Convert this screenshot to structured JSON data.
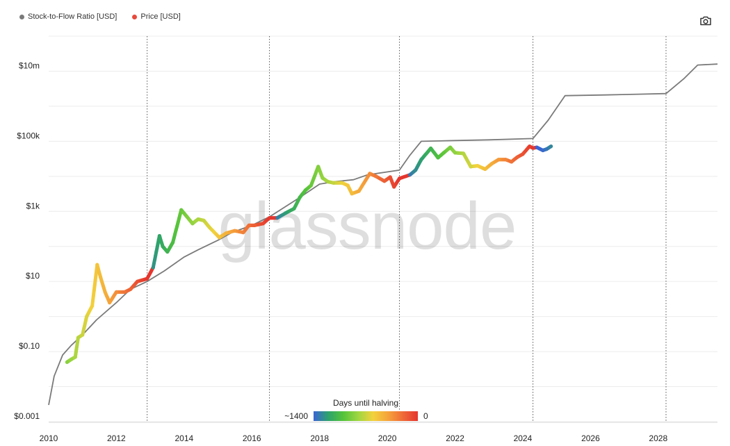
{
  "legend": [
    {
      "name": "Stock-to-Flow Ratio [USD]",
      "color": "#7a7a7a"
    },
    {
      "name": "Price [USD]",
      "color": "#e84a3c"
    }
  ],
  "watermark": "glassnode",
  "camera_icon": "camera-icon",
  "colorbar": {
    "title": "Days until halving",
    "left": "~1400",
    "right": "0",
    "colors": [
      "#3a64d6",
      "#2ea36b",
      "#55c43a",
      "#9fd641",
      "#f2d23c",
      "#f5a33b",
      "#ef6a37",
      "#e5362e"
    ]
  },
  "chart_data": {
    "type": "line",
    "yscale": "log",
    "ylim": [
      0.001,
      100000000
    ],
    "xlim": [
      "2010-01-01",
      "2029-10-01"
    ],
    "y_ticks": [
      {
        "value": 0.001,
        "label": "$0.001"
      },
      {
        "value": 0.1,
        "label": "$0.10"
      },
      {
        "value": 10,
        "label": "$10"
      },
      {
        "value": 1000,
        "label": "$1k"
      },
      {
        "value": 100000,
        "label": "$100k"
      },
      {
        "value": 10000000,
        "label": "$10m"
      }
    ],
    "x_ticks": [
      "2010",
      "2012",
      "2014",
      "2016",
      "2018",
      "2020",
      "2022",
      "2024",
      "2026",
      "2028"
    ],
    "halvings": [
      "2012-11-28",
      "2016-07-09",
      "2020-05-11",
      "2024-04-20",
      "2028-03-25"
    ],
    "series": [
      {
        "name": "Stock-to-Flow Ratio [USD]",
        "color": "#7a7a7a",
        "points": [
          [
            "2010-01-01",
            0.003
          ],
          [
            "2010-03-01",
            0.02
          ],
          [
            "2010-06-01",
            0.08
          ],
          [
            "2010-09-01",
            0.15
          ],
          [
            "2011-01-01",
            0.3
          ],
          [
            "2011-06-01",
            0.8
          ],
          [
            "2012-01-01",
            2.5
          ],
          [
            "2012-06-01",
            6
          ],
          [
            "2012-11-28",
            10
          ],
          [
            "2013-06-01",
            20
          ],
          [
            "2014-01-01",
            50
          ],
          [
            "2014-06-01",
            80
          ],
          [
            "2015-01-01",
            150
          ],
          [
            "2015-06-01",
            250
          ],
          [
            "2016-01-01",
            400
          ],
          [
            "2016-07-09",
            700
          ],
          [
            "2017-06-01",
            2500
          ],
          [
            "2018-01-01",
            6000
          ],
          [
            "2018-06-01",
            7000
          ],
          [
            "2019-01-01",
            8000
          ],
          [
            "2019-06-01",
            11000
          ],
          [
            "2020-05-11",
            15000
          ],
          [
            "2020-09-01",
            40000
          ],
          [
            "2021-01-01",
            100000
          ],
          [
            "2022-01-01",
            105000
          ],
          [
            "2023-01-01",
            110000
          ],
          [
            "2024-04-20",
            120000
          ],
          [
            "2024-10-01",
            400000
          ],
          [
            "2025-04-01",
            2000000
          ],
          [
            "2026-06-01",
            2100000
          ],
          [
            "2027-06-01",
            2200000
          ],
          [
            "2028-03-25",
            2300000
          ],
          [
            "2028-10-01",
            6000000
          ],
          [
            "2029-03-01",
            15000000
          ],
          [
            "2029-10-01",
            16000000
          ]
        ]
      },
      {
        "name": "Price [USD]",
        "color": "#e84a3c",
        "points": [
          [
            "2010-07-18",
            0.05,
            860
          ],
          [
            "2010-09-01",
            0.06,
            815
          ],
          [
            "2010-10-15",
            0.07,
            770
          ],
          [
            "2010-11-15",
            0.25,
            740
          ],
          [
            "2011-01-01",
            0.3,
            695
          ],
          [
            "2011-02-15",
            1.0,
            650
          ],
          [
            "2011-04-15",
            2.0,
            590
          ],
          [
            "2011-06-08",
            30,
            540
          ],
          [
            "2011-07-15",
            13,
            505
          ],
          [
            "2011-09-01",
            5,
            455
          ],
          [
            "2011-10-20",
            2.5,
            405
          ],
          [
            "2012-01-01",
            5,
            330
          ],
          [
            "2012-04-01",
            5,
            240
          ],
          [
            "2012-06-01",
            6,
            180
          ],
          [
            "2012-08-15",
            10,
            105
          ],
          [
            "2012-11-28",
            12,
            0
          ],
          [
            "2013-02-01",
            25,
            1250
          ],
          [
            "2013-04-10",
            200,
            1185
          ],
          [
            "2013-05-15",
            100,
            1150
          ],
          [
            "2013-07-05",
            70,
            1100
          ],
          [
            "2013-09-01",
            130,
            1040
          ],
          [
            "2013-12-01",
            1100,
            950
          ],
          [
            "2014-02-01",
            700,
            890
          ],
          [
            "2014-04-01",
            450,
            830
          ],
          [
            "2014-06-01",
            600,
            770
          ],
          [
            "2014-08-01",
            550,
            710
          ],
          [
            "2014-10-01",
            350,
            650
          ],
          [
            "2015-01-15",
            180,
            540
          ],
          [
            "2015-04-01",
            240,
            465
          ],
          [
            "2015-07-01",
            280,
            375
          ],
          [
            "2015-10-01",
            250,
            280
          ],
          [
            "2015-12-01",
            400,
            220
          ],
          [
            "2016-02-01",
            400,
            160
          ],
          [
            "2016-05-01",
            450,
            70
          ],
          [
            "2016-07-09",
            650,
            0
          ],
          [
            "2016-10-01",
            650,
            1310
          ],
          [
            "2017-01-01",
            900,
            1220
          ],
          [
            "2017-04-01",
            1200,
            1130
          ],
          [
            "2017-06-01",
            2500,
            1070
          ],
          [
            "2017-08-01",
            4000,
            1010
          ],
          [
            "2017-10-01",
            5500,
            950
          ],
          [
            "2017-12-17",
            19000,
            875
          ],
          [
            "2018-02-01",
            9000,
            830
          ],
          [
            "2018-04-01",
            7000,
            770
          ],
          [
            "2018-06-01",
            6500,
            710
          ],
          [
            "2018-09-01",
            6500,
            620
          ],
          [
            "2018-11-01",
            5500,
            555
          ],
          [
            "2018-12-15",
            3200,
            510
          ],
          [
            "2019-03-01",
            3800,
            435
          ],
          [
            "2019-06-26",
            12000,
            320
          ],
          [
            "2019-09-01",
            10000,
            250
          ],
          [
            "2019-12-01",
            7300,
            160
          ],
          [
            "2020-02-01",
            9500,
            100
          ],
          [
            "2020-03-13",
            5000,
            60
          ],
          [
            "2020-05-11",
            8700,
            0
          ],
          [
            "2020-09-01",
            11000,
            1330
          ],
          [
            "2020-11-01",
            15000,
            1270
          ],
          [
            "2021-01-01",
            30000,
            1210
          ],
          [
            "2021-04-14",
            63000,
            1100
          ],
          [
            "2021-07-01",
            34000,
            1030
          ],
          [
            "2021-09-01",
            47000,
            970
          ],
          [
            "2021-11-10",
            67000,
            895
          ],
          [
            "2022-01-01",
            47000,
            840
          ],
          [
            "2022-04-01",
            45000,
            750
          ],
          [
            "2022-06-18",
            19000,
            675
          ],
          [
            "2022-09-01",
            20000,
            600
          ],
          [
            "2022-11-21",
            16000,
            520
          ],
          [
            "2023-02-01",
            23000,
            445
          ],
          [
            "2023-04-15",
            30000,
            370
          ],
          [
            "2023-07-01",
            30000,
            295
          ],
          [
            "2023-09-01",
            26000,
            230
          ],
          [
            "2023-11-01",
            35000,
            170
          ],
          [
            "2024-01-01",
            43000,
            110
          ],
          [
            "2024-03-14",
            72000,
            40
          ],
          [
            "2024-04-20",
            64000,
            0
          ],
          [
            "2024-06-01",
            67000,
            1440
          ],
          [
            "2024-08-05",
            55000,
            1380
          ],
          [
            "2024-09-15",
            60000,
            1340
          ],
          [
            "2024-11-01",
            72000,
            1290
          ]
        ]
      }
    ]
  }
}
